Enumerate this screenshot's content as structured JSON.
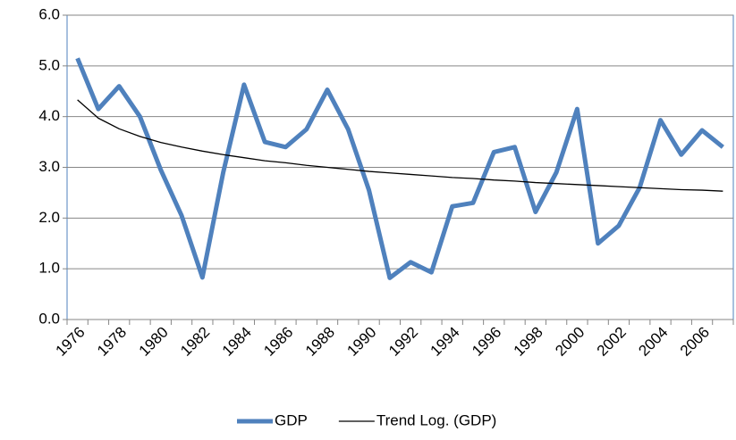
{
  "chart_data": {
    "type": "line",
    "categories": [
      "1976",
      null,
      "1978",
      null,
      "1980",
      null,
      "1982",
      null,
      "1984",
      null,
      "1986",
      null,
      "1988",
      null,
      "1990",
      null,
      "1992",
      null,
      "1994",
      null,
      "1996",
      null,
      "1998",
      null,
      "2000",
      null,
      "2002",
      null,
      "2004",
      null,
      "2006",
      null
    ],
    "series": [
      {
        "name": "GDP",
        "color": "#4f81bd",
        "values": [
          5.15,
          4.15,
          4.6,
          4.0,
          2.95,
          2.05,
          0.83,
          2.9,
          4.63,
          3.5,
          3.4,
          3.75,
          4.53,
          3.75,
          2.55,
          0.82,
          1.13,
          0.93,
          2.23,
          2.3,
          3.3,
          3.4,
          2.12,
          2.9,
          4.15,
          1.5,
          1.85,
          2.6,
          3.93,
          3.25,
          3.73,
          3.4
        ]
      },
      {
        "name": "Trend Log. (GDP)",
        "color": "#000000",
        "values": [
          4.33,
          3.97,
          3.76,
          3.61,
          3.49,
          3.4,
          3.32,
          3.25,
          3.19,
          3.13,
          3.09,
          3.04,
          3.0,
          2.96,
          2.92,
          2.89,
          2.86,
          2.83,
          2.8,
          2.78,
          2.75,
          2.73,
          2.7,
          2.68,
          2.66,
          2.64,
          2.62,
          2.6,
          2.58,
          2.56,
          2.55,
          2.53
        ]
      }
    ],
    "ylim": [
      0,
      6
    ],
    "yticks": [
      {
        "value": 0,
        "label": "0.0"
      },
      {
        "value": 1,
        "label": "1.0"
      },
      {
        "value": 2,
        "label": "2.0"
      },
      {
        "value": 3,
        "label": "3.0"
      },
      {
        "value": 4,
        "label": "4.0"
      },
      {
        "value": 5,
        "label": "5.0"
      },
      {
        "value": 6,
        "label": "6.0"
      }
    ],
    "grid": true,
    "legend": "bottom"
  }
}
